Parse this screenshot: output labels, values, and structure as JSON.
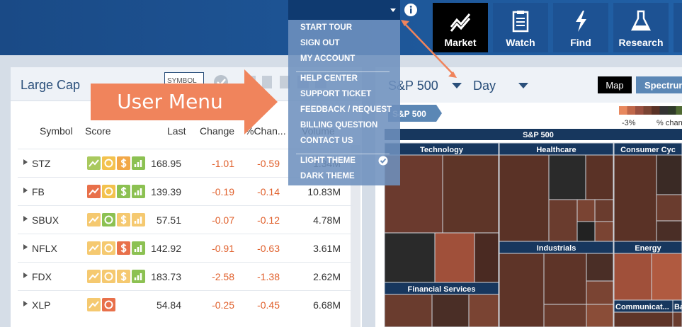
{
  "header": {
    "menu": [
      [
        "START TOUR",
        "SIGN OUT",
        "MY ACCOUNT"
      ],
      [
        "HELP CENTER",
        "SUPPORT TICKET",
        "FEEDBACK / REQUEST",
        "BILLING QUESTION",
        "CONTACT US"
      ],
      [
        "LIGHT THEME",
        "DARK THEME"
      ]
    ],
    "nav": [
      "Market",
      "Watch",
      "Find",
      "Research"
    ]
  },
  "watchlist": {
    "title": "Large Cap",
    "symbol_input": "SYMBOL",
    "columns": [
      "Symbol",
      "Score",
      "Last",
      "Change",
      "%Chan...",
      "Volume"
    ],
    "rows": [
      {
        "symbol": "STZ",
        "score": [
          "#a9c95e",
          "#f3c24e",
          "#f2a848",
          "#8cc152"
        ],
        "last": 168.95,
        "change": -1.01,
        "pct": -0.59,
        "volume": "1.34M"
      },
      {
        "symbol": "FB",
        "score": [
          "#e8704a",
          "#f3c24e",
          "#8cc152",
          "#8cc152"
        ],
        "last": 139.39,
        "change": -0.19,
        "pct": -0.14,
        "volume": "10.83M"
      },
      {
        "symbol": "SBUX",
        "score": [
          "#f5c970",
          "#8cc152",
          "#f5c970",
          "#f5c970"
        ],
        "last": 57.51,
        "change": -0.07,
        "pct": -0.12,
        "volume": "4.78M"
      },
      {
        "symbol": "NFLX",
        "score": [
          "#f5c970",
          "#f5c970",
          "#e8704a",
          "#8cc152"
        ],
        "last": 142.92,
        "change": -0.91,
        "pct": -0.63,
        "volume": "3.61M"
      },
      {
        "symbol": "FDX",
        "score": [
          "#f5c970",
          "#f5c970",
          "#f5c970",
          "#8cc152"
        ],
        "last": 183.73,
        "change": -2.58,
        "pct": -1.38,
        "volume": "2.62M"
      },
      {
        "symbol": "XLP",
        "score": [
          "#f5c970",
          "#e8704a"
        ],
        "last": 54.84,
        "change": -0.25,
        "pct": -0.45,
        "volume": "6.68M"
      }
    ]
  },
  "heatmap": {
    "index": "S&P 500",
    "period": "Day",
    "view_buttons": [
      "Map",
      "Spectrum"
    ],
    "legend": [
      "-3%",
      "% chang"
    ],
    "breadcrumb": "S&P 500",
    "root": "S&P 500",
    "sectors": [
      "Technology",
      "Healthcare",
      "Consumer Cyc",
      "Industrials",
      "Energy",
      "Financial Services",
      "Communicat...",
      "Ba"
    ]
  },
  "annotation": "User Menu"
}
